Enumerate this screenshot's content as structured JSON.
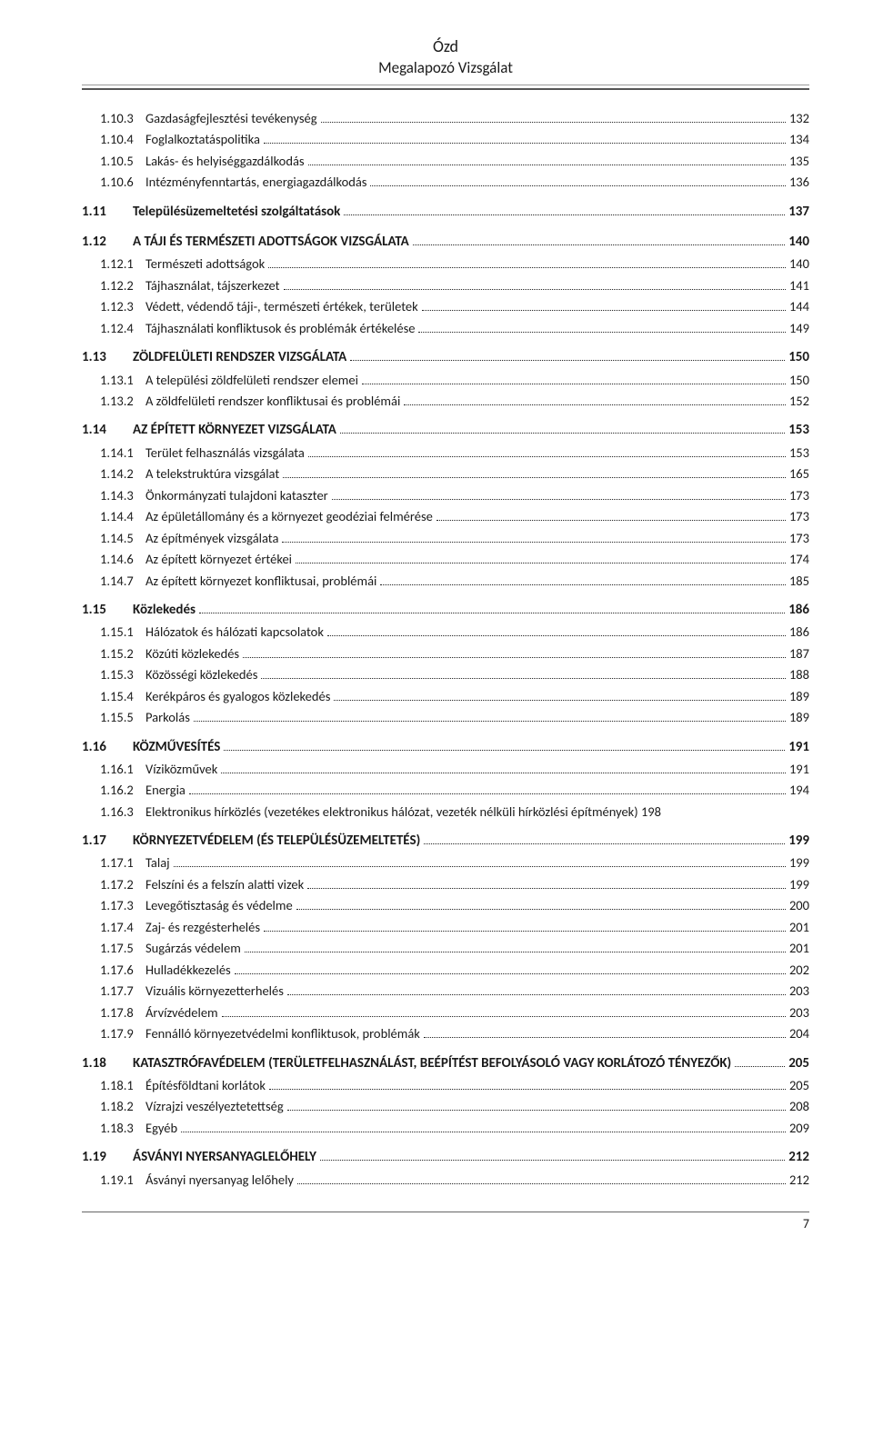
{
  "header": {
    "title": "Ózd",
    "subtitle": "Megalapozó Vizsgálat"
  },
  "footer": {
    "pageNumber": "7"
  },
  "toc": [
    {
      "level": 2,
      "num": "1.10.3",
      "label": "Gazdaságfejlesztési tevékenység",
      "page": "132"
    },
    {
      "level": 2,
      "num": "1.10.4",
      "label": "Foglalkoztatáspolitika",
      "page": "134"
    },
    {
      "level": 2,
      "num": "1.10.5",
      "label": "Lakás- és helyiséggazdálkodás",
      "page": "135"
    },
    {
      "level": 2,
      "num": "1.10.6",
      "label": "Intézményfenntartás, energiagazdálkodás",
      "page": "136"
    },
    {
      "level": 1,
      "num": "1.11",
      "label": "Településüzemeltetési szolgáltatások",
      "page": "137"
    },
    {
      "level": 1,
      "num": "1.12",
      "label": "A TÁJI ÉS TERMÉSZETI ADOTTSÁGOK VIZSGÁLATA",
      "page": "140"
    },
    {
      "level": 2,
      "num": "1.12.1",
      "label": "Természeti adottságok",
      "page": "140"
    },
    {
      "level": 2,
      "num": "1.12.2",
      "label": "Tájhasználat, tájszerkezet",
      "page": "141"
    },
    {
      "level": 2,
      "num": "1.12.3",
      "label": "Védett, védendő táji-, természeti értékek, területek",
      "page": "144"
    },
    {
      "level": 2,
      "num": "1.12.4",
      "label": "Tájhasználati konfliktusok és problémák értékelése",
      "page": "149"
    },
    {
      "level": 1,
      "num": "1.13",
      "label": "ZÖLDFELÜLETI RENDSZER VIZSGÁLATA",
      "page": "150"
    },
    {
      "level": 2,
      "num": "1.13.1",
      "label": "A települési zöldfelületi rendszer elemei",
      "page": "150"
    },
    {
      "level": 2,
      "num": "1.13.2",
      "label": "A zöldfelületi rendszer konfliktusai és problémái",
      "page": "152"
    },
    {
      "level": 1,
      "num": "1.14",
      "label": "AZ ÉPÍTETT KÖRNYEZET VIZSGÁLATA",
      "page": "153"
    },
    {
      "level": 2,
      "num": "1.14.1",
      "label": "Terület felhasználás vizsgálata",
      "page": "153"
    },
    {
      "level": 2,
      "num": "1.14.2",
      "label": "A telekstruktúra vizsgálat",
      "page": "165"
    },
    {
      "level": 2,
      "num": "1.14.3",
      "label": "Önkormányzati tulajdoni kataszter",
      "page": "173"
    },
    {
      "level": 2,
      "num": "1.14.4",
      "label": "Az épületállomány és a környezet geodéziai felmérése",
      "page": "173"
    },
    {
      "level": 2,
      "num": "1.14.5",
      "label": "Az építmények vizsgálata",
      "page": "173"
    },
    {
      "level": 2,
      "num": "1.14.6",
      "label": "Az épített környezet értékei",
      "page": "174"
    },
    {
      "level": 2,
      "num": "1.14.7",
      "label": "Az épített környezet konfliktusai, problémái",
      "page": "185"
    },
    {
      "level": 1,
      "num": "1.15",
      "label": "Közlekedés",
      "page": "186"
    },
    {
      "level": 2,
      "num": "1.15.1",
      "label": "Hálózatok és hálózati kapcsolatok",
      "page": "186"
    },
    {
      "level": 2,
      "num": "1.15.2",
      "label": "Közúti közlekedés",
      "page": "187"
    },
    {
      "level": 2,
      "num": "1.15.3",
      "label": "Közösségi közlekedés",
      "page": "188"
    },
    {
      "level": 2,
      "num": "1.15.4",
      "label": "Kerékpáros és gyalogos közlekedés",
      "page": "189"
    },
    {
      "level": 2,
      "num": "1.15.5",
      "label": "Parkolás",
      "page": "189"
    },
    {
      "level": 1,
      "num": "1.16",
      "label": "KÖZMŰVESÍTÉS",
      "page": "191"
    },
    {
      "level": 2,
      "num": "1.16.1",
      "label": "Víziközművek",
      "page": "191"
    },
    {
      "level": 2,
      "num": "1.16.2",
      "label": "Energia",
      "page": "194"
    },
    {
      "level": 2,
      "num": "1.16.3",
      "label": "Elektronikus hírközlés (vezetékes elektronikus hálózat, vezeték nélküli hírközlési építmények) 198",
      "page": ""
    },
    {
      "level": 1,
      "num": "1.17",
      "label": "KÖRNYEZETVÉDELEM (ÉS TELEPÜLÉSÜZEMELTETÉS)",
      "page": "199"
    },
    {
      "level": 2,
      "num": "1.17.1",
      "label": "Talaj",
      "page": "199"
    },
    {
      "level": 2,
      "num": "1.17.2",
      "label": "Felszíni és a felszín alatti vizek",
      "page": "199"
    },
    {
      "level": 2,
      "num": "1.17.3",
      "label": "Levegőtisztaság és védelme",
      "page": "200"
    },
    {
      "level": 2,
      "num": "1.17.4",
      "label": "Zaj- és rezgésterhelés",
      "page": "201"
    },
    {
      "level": 2,
      "num": "1.17.5",
      "label": "Sugárzás védelem",
      "page": "201"
    },
    {
      "level": 2,
      "num": "1.17.6",
      "label": "Hulladékkezelés",
      "page": "202"
    },
    {
      "level": 2,
      "num": "1.17.7",
      "label": "Vizuális környezetterhelés",
      "page": "203"
    },
    {
      "level": 2,
      "num": "1.17.8",
      "label": "Árvízvédelem",
      "page": "203"
    },
    {
      "level": 2,
      "num": "1.17.9",
      "label": "Fennálló környezetvédelmi konfliktusok, problémák",
      "page": "204"
    },
    {
      "level": 1,
      "num": "1.18",
      "label": "KATASZTRÓFAVÉDELEM (TERÜLETFELHASZNÁLÁST, BEÉPÍTÉST BEFOLYÁSOLÓ VAGY KORLÁTOZÓ TÉNYEZŐK)",
      "page": "205"
    },
    {
      "level": 2,
      "num": "1.18.1",
      "label": "Építésföldtani korlátok",
      "page": "205"
    },
    {
      "level": 2,
      "num": "1.18.2",
      "label": "Vízrajzi veszélyeztetettség",
      "page": "208"
    },
    {
      "level": 2,
      "num": "1.18.3",
      "label": "Egyéb",
      "page": "209"
    },
    {
      "level": 1,
      "num": "1.19",
      "label": "ÁSVÁNYI NYERSANYAGLELŐHELY",
      "page": "212"
    },
    {
      "level": 2,
      "num": "1.19.1",
      "label": "Ásványi nyersanyag lelőhely",
      "page": "212"
    }
  ]
}
